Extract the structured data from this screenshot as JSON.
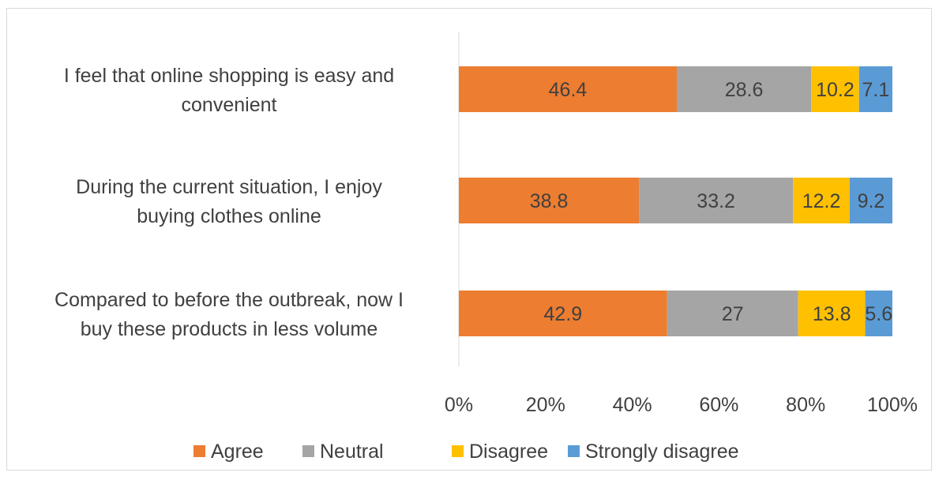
{
  "chart_data": {
    "type": "bar",
    "orientation": "horizontal",
    "stacked": true,
    "percent_stacked": true,
    "categories": [
      [
        "I feel that online shopping is easy and",
        "convenient"
      ],
      [
        "During the current situation, I enjoy",
        "buying clothes online"
      ],
      [
        "Compared to before the outbreak, now I",
        "buy these products in less volume"
      ]
    ],
    "series": [
      {
        "name": "Agree",
        "color": "#ed7d31",
        "values": [
          46.4,
          38.8,
          42.9
        ]
      },
      {
        "name": "Neutral",
        "color": "#a5a5a5",
        "values": [
          28.6,
          33.2,
          27
        ]
      },
      {
        "name": "Disagree",
        "color": "#ffc000",
        "values": [
          10.2,
          12.2,
          13.8
        ]
      },
      {
        "name": "Strongly disagree",
        "color": "#5b9bd5",
        "values": [
          7.1,
          9.2,
          5.6
        ]
      }
    ],
    "x_ticks": [
      "0%",
      "20%",
      "40%",
      "60%",
      "80%",
      "100%"
    ],
    "xlim": [
      0,
      100
    ],
    "grid": false,
    "legend_position": "bottom"
  }
}
